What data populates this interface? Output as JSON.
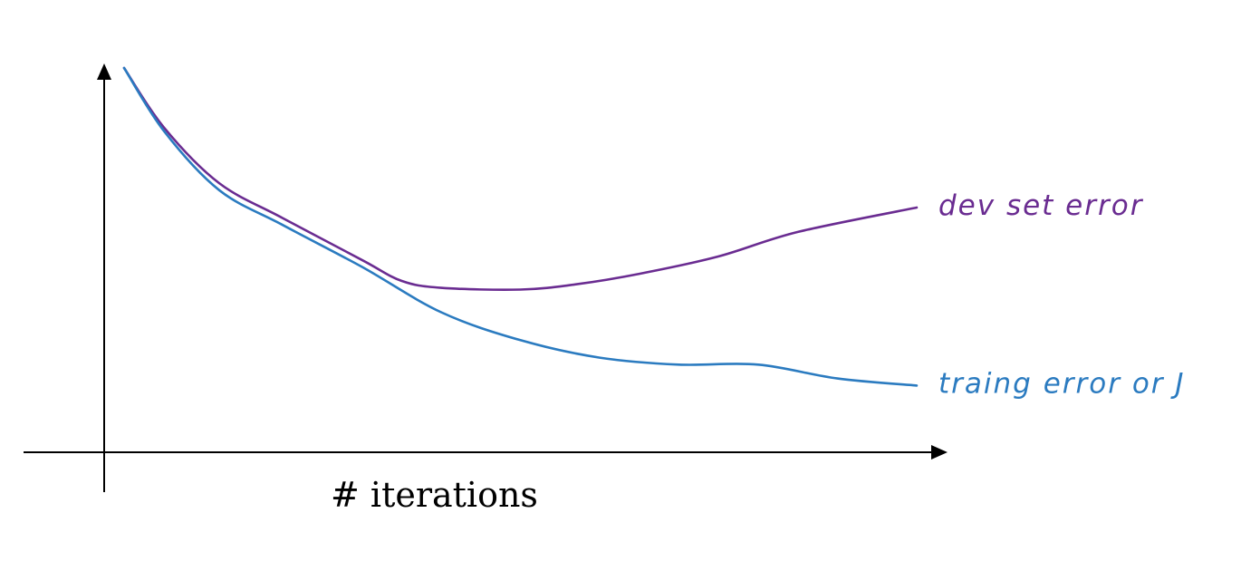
{
  "chart_data": {
    "type": "line",
    "title": "",
    "xlabel": "# iterations",
    "ylabel": "",
    "xlim": [
      0,
      100
    ],
    "ylim": [
      0,
      100
    ],
    "grid": false,
    "legend": "inline-right",
    "series": [
      {
        "name": "dev set error",
        "color": "#6a2c91",
        "x": [
          0,
          5,
          12,
          20,
          30,
          35,
          40,
          50,
          57,
          65,
          75,
          85,
          100
        ],
        "y": [
          100,
          83,
          67,
          57,
          45,
          39,
          37,
          36.5,
          38,
          41,
          46,
          53,
          60
        ]
      },
      {
        "name": "traing error or J",
        "color": "#2b7bc0",
        "x": [
          0,
          5,
          12,
          20,
          30,
          40,
          50,
          60,
          70,
          80,
          90,
          100
        ],
        "y": [
          100,
          82,
          65,
          55,
          43,
          30,
          22,
          17,
          15,
          15,
          11,
          9
        ]
      }
    ]
  }
}
